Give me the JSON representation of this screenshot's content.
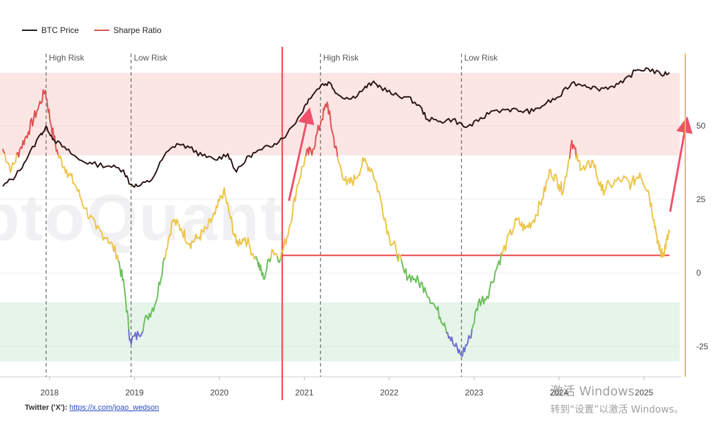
{
  "legend": [
    {
      "label": "BTC Price",
      "color": "#1a1a1a"
    },
    {
      "label": "Sharpe Ratio",
      "color": "#e05252"
    }
  ],
  "watermark": "ptoQuant",
  "footer": {
    "label": "Twitter ('X'):",
    "link": "https://x.com/joao_wedson"
  },
  "activation": {
    "line1": "激活 Windows",
    "line2": "转到“设置”以激活 Windows。"
  },
  "colors": {
    "price": "#2a1414",
    "high_risk_zone": "#fbe6e4",
    "low_risk_zone": "#e6f4ea",
    "sharpe_high": "#e05252",
    "sharpe_mid": "#ecc54a",
    "sharpe_low": "#6cbf5c",
    "sharpe_very_low": "#6b6fd0",
    "vertical_marker": "#e84040",
    "threshold_line": "#e84040",
    "arrow": "#f0506a",
    "axis_line": "#e6c14a"
  },
  "chart_data": {
    "type": "line",
    "title": "",
    "x_tick_labels": [
      "2018",
      "2019",
      "2020",
      "2021",
      "2022",
      "2023",
      "2024",
      "2025"
    ],
    "y_right_ticks": [
      50,
      25,
      0,
      -25
    ],
    "y_right_range": [
      -35,
      70
    ],
    "zones": [
      {
        "name": "High Risk zone",
        "from": 40,
        "to": 68
      },
      {
        "name": "Low Risk zone",
        "from": -10,
        "to": -30
      }
    ],
    "annotations": [
      {
        "label": "High Risk",
        "date": 2017.96
      },
      {
        "label": "Low Risk",
        "date": 2018.96
      },
      {
        "label": "High Risk",
        "date": 2021.19
      },
      {
        "label": "Low Risk",
        "date": 2022.85
      }
    ],
    "vertical_marker_date": 2020.74,
    "threshold_value": 6,
    "threshold_range": [
      2020.74,
      2025.3
    ],
    "sharpe_color_bands": [
      {
        "min": 40,
        "color_key": "sharpe_high"
      },
      {
        "min": 5,
        "color_key": "sharpe_mid"
      },
      {
        "min": -20,
        "color_key": "sharpe_low"
      },
      {
        "min": -100,
        "color_key": "sharpe_very_low"
      }
    ],
    "series": [
      {
        "name": "BTC Price",
        "points": [
          [
            2017.45,
            37
          ],
          [
            2017.6,
            42
          ],
          [
            2017.75,
            52
          ],
          [
            2017.9,
            63
          ],
          [
            2017.97,
            66
          ],
          [
            2018.05,
            60
          ],
          [
            2018.2,
            55
          ],
          [
            2018.35,
            50
          ],
          [
            2018.5,
            48
          ],
          [
            2018.7,
            47
          ],
          [
            2018.87,
            45
          ],
          [
            2018.95,
            38
          ],
          [
            2019.05,
            37
          ],
          [
            2019.2,
            40
          ],
          [
            2019.35,
            52
          ],
          [
            2019.5,
            58
          ],
          [
            2019.65,
            56
          ],
          [
            2019.8,
            52
          ],
          [
            2019.95,
            50
          ],
          [
            2020.1,
            53
          ],
          [
            2020.2,
            44
          ],
          [
            2020.35,
            52
          ],
          [
            2020.5,
            55
          ],
          [
            2020.65,
            58
          ],
          [
            2020.8,
            63
          ],
          [
            2020.95,
            72
          ],
          [
            2021.05,
            80
          ],
          [
            2021.2,
            87
          ],
          [
            2021.3,
            88
          ],
          [
            2021.4,
            82
          ],
          [
            2021.55,
            80
          ],
          [
            2021.7,
            85
          ],
          [
            2021.8,
            88
          ],
          [
            2021.9,
            86
          ],
          [
            2022.05,
            82
          ],
          [
            2022.2,
            81
          ],
          [
            2022.35,
            77
          ],
          [
            2022.45,
            70
          ],
          [
            2022.6,
            69
          ],
          [
            2022.75,
            70
          ],
          [
            2022.9,
            66
          ],
          [
            2023.05,
            69
          ],
          [
            2023.2,
            74
          ],
          [
            2023.4,
            75
          ],
          [
            2023.55,
            74
          ],
          [
            2023.7,
            74
          ],
          [
            2023.85,
            78
          ],
          [
            2024.0,
            81
          ],
          [
            2024.15,
            88
          ],
          [
            2024.3,
            87
          ],
          [
            2024.45,
            85
          ],
          [
            2024.6,
            86
          ],
          [
            2024.75,
            88
          ],
          [
            2024.9,
            94
          ],
          [
            2025.05,
            95
          ],
          [
            2025.2,
            92
          ],
          [
            2025.3,
            93
          ]
        ]
      },
      {
        "name": "Sharpe Ratio",
        "points": [
          [
            2017.45,
            42
          ],
          [
            2017.55,
            35
          ],
          [
            2017.65,
            42
          ],
          [
            2017.75,
            48
          ],
          [
            2017.85,
            55
          ],
          [
            2017.95,
            62
          ],
          [
            2018.02,
            50
          ],
          [
            2018.1,
            40
          ],
          [
            2018.2,
            35
          ],
          [
            2018.3,
            30
          ],
          [
            2018.42,
            22
          ],
          [
            2018.55,
            15
          ],
          [
            2018.68,
            12
          ],
          [
            2018.8,
            6
          ],
          [
            2018.88,
            -5
          ],
          [
            2018.95,
            -23
          ],
          [
            2019.05,
            -21
          ],
          [
            2019.15,
            -15
          ],
          [
            2019.25,
            -10
          ],
          [
            2019.35,
            5
          ],
          [
            2019.45,
            18
          ],
          [
            2019.55,
            15
          ],
          [
            2019.65,
            10
          ],
          [
            2019.75,
            12
          ],
          [
            2019.85,
            15
          ],
          [
            2019.95,
            20
          ],
          [
            2020.05,
            28
          ],
          [
            2020.12,
            20
          ],
          [
            2020.2,
            10
          ],
          [
            2020.3,
            12
          ],
          [
            2020.45,
            4
          ],
          [
            2020.52,
            -2
          ],
          [
            2020.62,
            8
          ],
          [
            2020.72,
            5
          ],
          [
            2020.82,
            15
          ],
          [
            2020.92,
            30
          ],
          [
            2021.02,
            40
          ],
          [
            2021.1,
            42
          ],
          [
            2021.2,
            52
          ],
          [
            2021.27,
            58
          ],
          [
            2021.33,
            48
          ],
          [
            2021.4,
            38
          ],
          [
            2021.5,
            30
          ],
          [
            2021.6,
            32
          ],
          [
            2021.7,
            38
          ],
          [
            2021.8,
            35
          ],
          [
            2021.9,
            25
          ],
          [
            2022.0,
            12
          ],
          [
            2022.08,
            8
          ],
          [
            2022.18,
            0
          ],
          [
            2022.3,
            -2
          ],
          [
            2022.42,
            -5
          ],
          [
            2022.55,
            -12
          ],
          [
            2022.65,
            -17
          ],
          [
            2022.75,
            -24
          ],
          [
            2022.85,
            -28
          ],
          [
            2022.95,
            -22
          ],
          [
            2023.05,
            -10
          ],
          [
            2023.15,
            -8
          ],
          [
            2023.28,
            3
          ],
          [
            2023.38,
            10
          ],
          [
            2023.5,
            18
          ],
          [
            2023.6,
            15
          ],
          [
            2023.7,
            18
          ],
          [
            2023.8,
            25
          ],
          [
            2023.9,
            35
          ],
          [
            2024.0,
            30
          ],
          [
            2024.05,
            28
          ],
          [
            2024.15,
            45
          ],
          [
            2024.22,
            38
          ],
          [
            2024.3,
            35
          ],
          [
            2024.4,
            38
          ],
          [
            2024.5,
            28
          ],
          [
            2024.6,
            30
          ],
          [
            2024.75,
            32
          ],
          [
            2024.85,
            30
          ],
          [
            2024.95,
            34
          ],
          [
            2025.05,
            28
          ],
          [
            2025.12,
            18
          ],
          [
            2025.18,
            8
          ],
          [
            2025.22,
            6
          ],
          [
            2025.26,
            10
          ],
          [
            2025.3,
            14
          ]
        ]
      }
    ]
  }
}
